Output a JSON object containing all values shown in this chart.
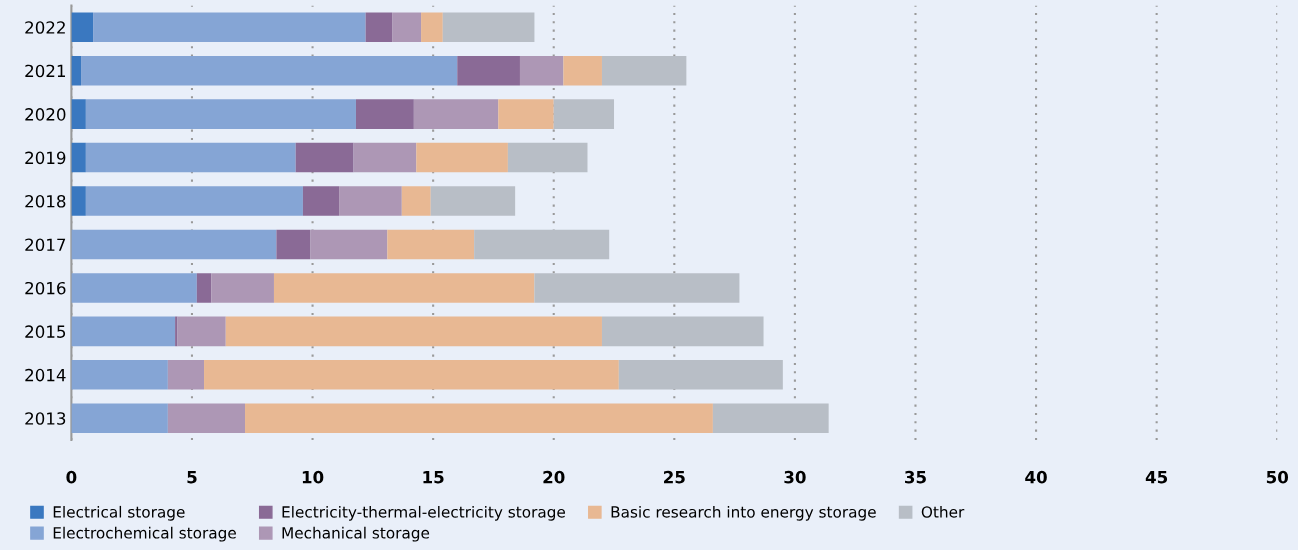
{
  "chart_data": {
    "type": "bar",
    "orientation": "horizontal",
    "stacked": true,
    "categories": [
      "2022",
      "2021",
      "2020",
      "2019",
      "2018",
      "2017",
      "2016",
      "2015",
      "2014",
      "2013"
    ],
    "series": [
      {
        "name": "Electrical storage",
        "color": "#3a78c0",
        "values": [
          0.9,
          0.4,
          0.6,
          0.6,
          0.6,
          0,
          0,
          0,
          0,
          0
        ]
      },
      {
        "name": "Electrochemical storage",
        "color": "#85a5d5",
        "values": [
          11.3,
          15.6,
          11.2,
          8.7,
          9.0,
          8.5,
          5.2,
          4.3,
          4.0,
          4.0
        ]
      },
      {
        "name": "Electricity-thermal-electricity storage",
        "color": "#8a6a96",
        "values": [
          1.1,
          2.6,
          2.4,
          2.4,
          1.5,
          1.4,
          0.6,
          0.1,
          0,
          0
        ]
      },
      {
        "name": "Mechanical storage",
        "color": "#ad97b5",
        "values": [
          1.2,
          1.8,
          3.5,
          2.6,
          2.6,
          3.2,
          2.6,
          2.0,
          1.5,
          3.2
        ]
      },
      {
        "name": "Basic research into energy storage",
        "color": "#e8b893",
        "values": [
          0.9,
          1.6,
          2.3,
          3.8,
          1.2,
          3.6,
          10.8,
          15.6,
          17.2,
          19.4
        ]
      },
      {
        "name": "Other",
        "color": "#b8bec6",
        "values": [
          3.8,
          3.5,
          2.5,
          3.3,
          3.5,
          5.6,
          8.5,
          6.7,
          6.8,
          4.8
        ]
      }
    ],
    "xlim": [
      0,
      50
    ],
    "xticks": [
      0,
      5,
      10,
      15,
      20,
      25,
      30,
      35,
      40,
      45,
      50
    ],
    "grid": "x",
    "legend": "bottom"
  }
}
